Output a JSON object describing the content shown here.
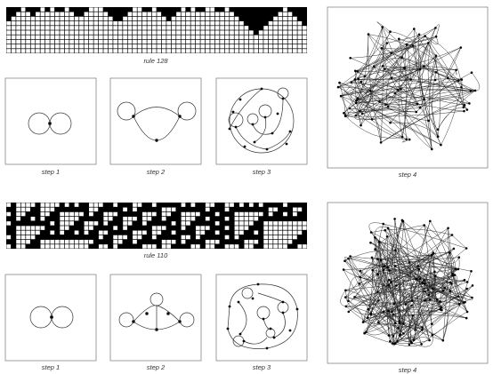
{
  "colors": {
    "ink": "#000000",
    "paper": "#ffffff",
    "frame": "#888888",
    "edge": "#333333"
  },
  "top": {
    "rule_caption": "rule 128",
    "step_captions": [
      "step 1",
      "step 2",
      "step 3",
      "step 4"
    ]
  },
  "bottom": {
    "rule_caption": "rule 110",
    "step_captions": [
      "step 1",
      "step 2",
      "step 3",
      "step 4"
    ]
  }
}
